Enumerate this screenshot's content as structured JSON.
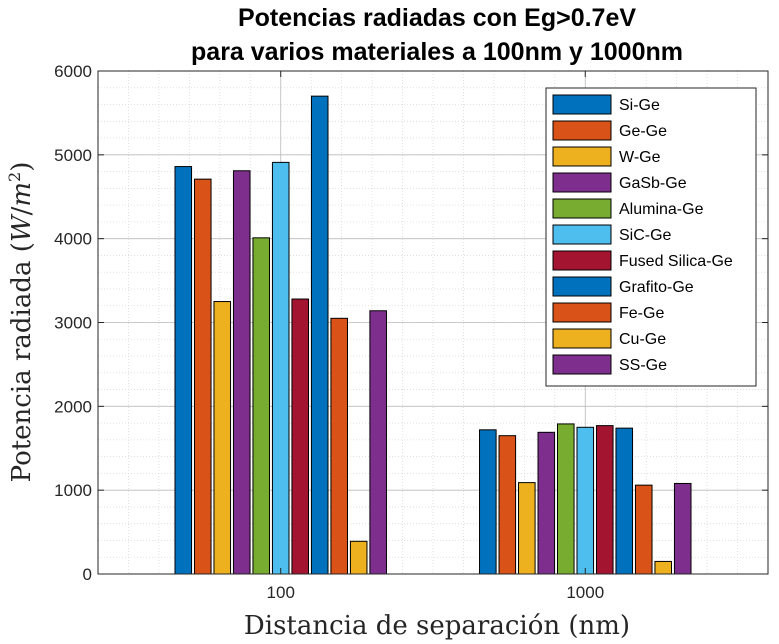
{
  "chart_data": {
    "type": "bar",
    "title_lines": [
      "Potencias radiadas con Eg>0.7eV",
      "para varios materiales a 100nm y 1000nm"
    ],
    "xlabel": "Distancia de separación (nm)",
    "ylabel": "Potencia radiada (W/m²)",
    "ylabel_parts": {
      "prefix": "Potencia radiada (",
      "var": "W",
      "slash": "/",
      "var2": "m",
      "exp": "2",
      "suffix": ")"
    },
    "categories": [
      "100",
      "1000"
    ],
    "ylim": [
      0,
      6000
    ],
    "yticks": [
      0,
      1000,
      2000,
      3000,
      4000,
      5000,
      6000
    ],
    "grid": true,
    "minor_grid": true,
    "legend_position": "top-right",
    "series": [
      {
        "name": "Si-Ge",
        "color": "#0072BD",
        "values": [
          4860,
          1720
        ]
      },
      {
        "name": "Ge-Ge",
        "color": "#D95319",
        "values": [
          4710,
          1650
        ]
      },
      {
        "name": "W-Ge",
        "color": "#EDB120",
        "values": [
          3250,
          1090
        ]
      },
      {
        "name": "GaSb-Ge",
        "color": "#7E2F8E",
        "values": [
          4810,
          1690
        ]
      },
      {
        "name": "Alumina-Ge",
        "color": "#77AC30",
        "values": [
          4010,
          1790
        ]
      },
      {
        "name": "SiC-Ge",
        "color": "#4DBEEE",
        "values": [
          4910,
          1750
        ]
      },
      {
        "name": "Fused Silica-Ge",
        "color": "#A2142F",
        "values": [
          3280,
          1770
        ]
      },
      {
        "name": "Grafito-Ge",
        "color": "#0072BD",
        "values": [
          5700,
          1740
        ]
      },
      {
        "name": "Fe-Ge",
        "color": "#D95319",
        "values": [
          3050,
          1060
        ]
      },
      {
        "name": "Cu-Ge",
        "color": "#EDB120",
        "values": [
          390,
          150
        ]
      },
      {
        "name": "SS-Ge",
        "color": "#7E2F8E",
        "values": [
          3140,
          1080
        ]
      }
    ]
  }
}
